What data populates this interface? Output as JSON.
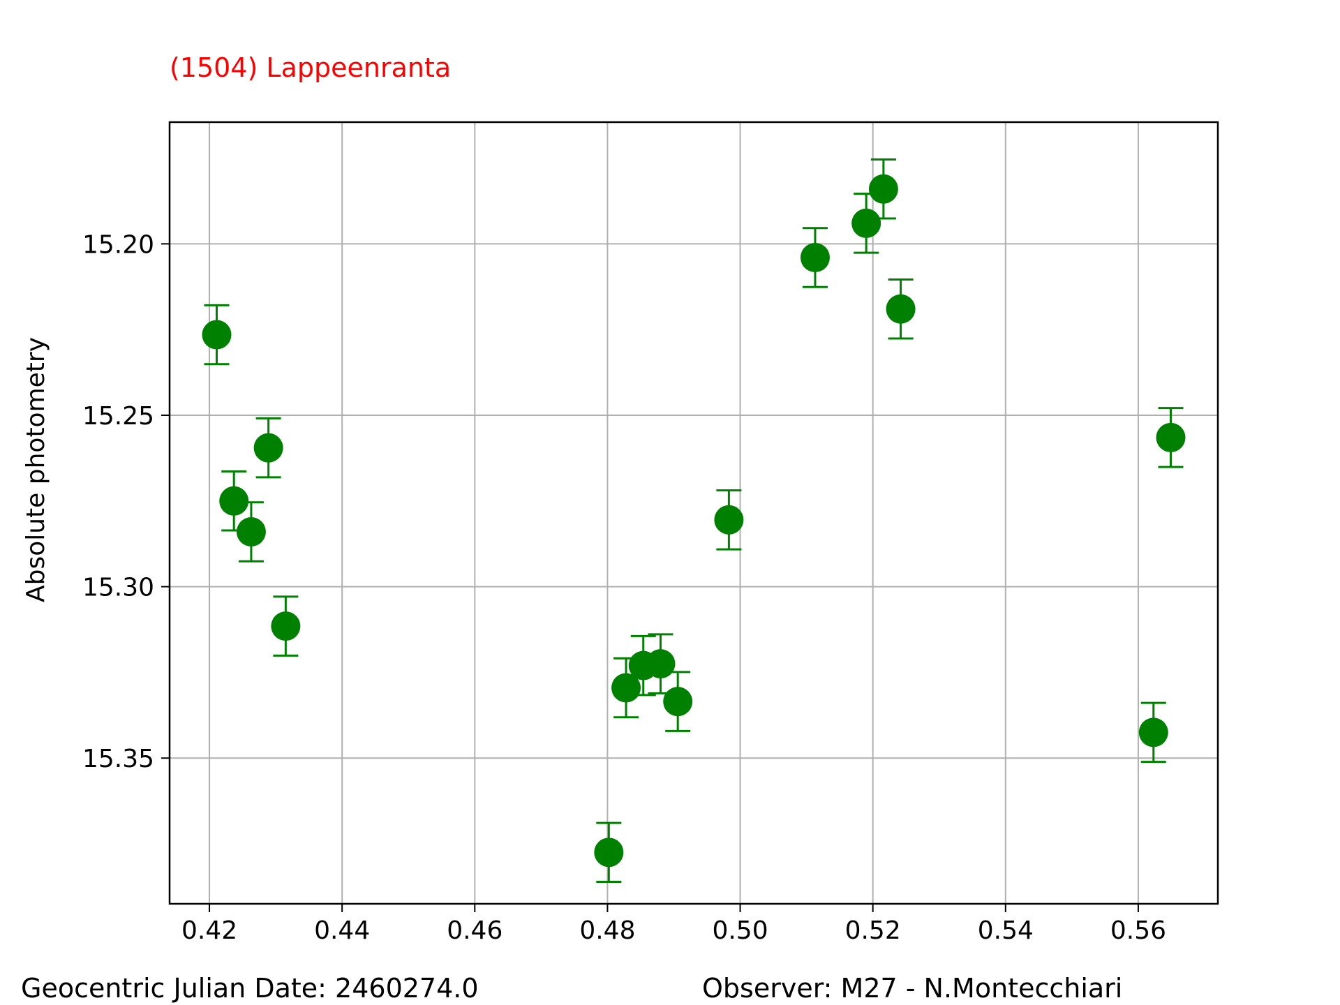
{
  "chart_data": {
    "type": "scatter",
    "title": "(1504) Lappeenranta",
    "title_color": "#ff0000",
    "xlabel": "",
    "ylabel": "Absolute photometry",
    "footer_left": "Geocentric Julian Date: 2460274.0",
    "footer_right": "Observer: M27 - N.Montecchiari",
    "xlim": [
      0.414,
      0.572
    ],
    "ylim": [
      15.3925,
      15.1645
    ],
    "y_inverted": true,
    "grid": true,
    "marker_color": "#008000",
    "x_ticks": [
      0.42,
      0.44,
      0.46,
      0.48,
      0.5,
      0.52,
      0.54,
      0.56
    ],
    "x_tick_labels": [
      "0.42",
      "0.44",
      "0.46",
      "0.48",
      "0.50",
      "0.52",
      "0.54",
      "0.56"
    ],
    "y_ticks": [
      15.2,
      15.25,
      15.3,
      15.35
    ],
    "y_tick_labels": [
      "15.20",
      "15.25",
      "15.30",
      "15.35"
    ],
    "error": 0.0086,
    "points": [
      {
        "x": 0.4211,
        "y": 15.2265
      },
      {
        "x": 0.4237,
        "y": 15.275
      },
      {
        "x": 0.4263,
        "y": 15.284
      },
      {
        "x": 0.4289,
        "y": 15.2595
      },
      {
        "x": 0.4315,
        "y": 15.3115
      },
      {
        "x": 0.4802,
        "y": 15.3775
      },
      {
        "x": 0.4828,
        "y": 15.3295
      },
      {
        "x": 0.4854,
        "y": 15.323
      },
      {
        "x": 0.488,
        "y": 15.3225
      },
      {
        "x": 0.4906,
        "y": 15.3335
      },
      {
        "x": 0.4983,
        "y": 15.2805
      },
      {
        "x": 0.5113,
        "y": 15.204
      },
      {
        "x": 0.519,
        "y": 15.194
      },
      {
        "x": 0.5216,
        "y": 15.184
      },
      {
        "x": 0.5242,
        "y": 15.219
      },
      {
        "x": 0.5623,
        "y": 15.3425
      },
      {
        "x": 0.5649,
        "y": 15.2565
      }
    ]
  }
}
